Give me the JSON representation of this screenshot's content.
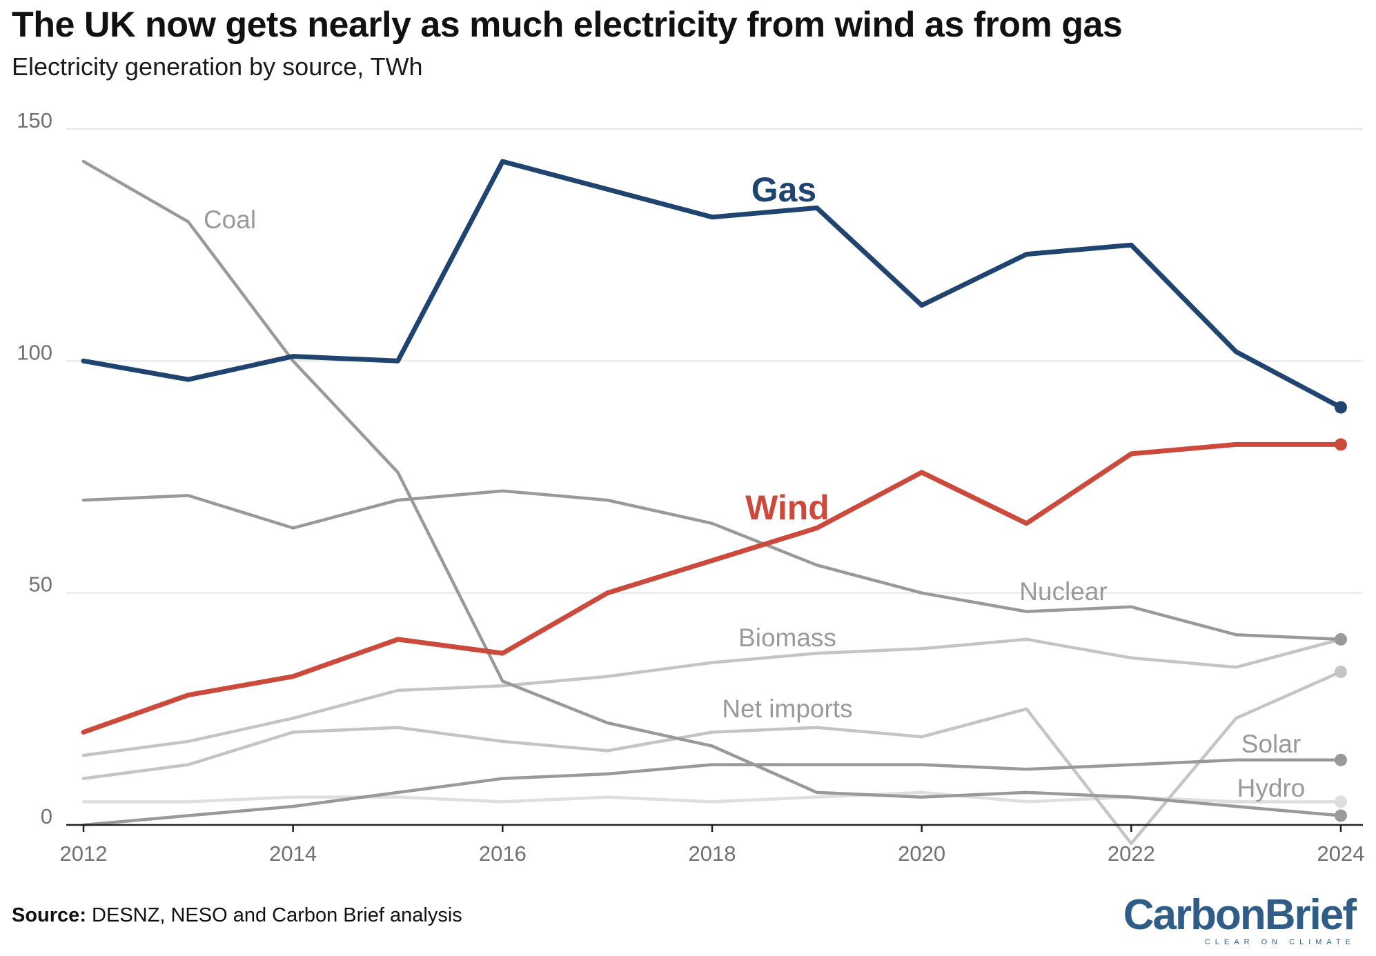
{
  "header": {
    "title": "The UK now gets nearly as much electricity from wind as from gas",
    "subtitle": "Electricity generation by source, TWh"
  },
  "footer": {
    "source_label": "Source:",
    "source_text": "DESNZ, NESO and Carbon Brief analysis",
    "logo_text": "CarbonBrief",
    "logo_tagline": "CLEAR ON CLIMATE"
  },
  "colors": {
    "gas": "#1f4470",
    "wind": "#cc4a3c",
    "dark_grey": "#999999",
    "mid_grey": "#c4c4c4",
    "light_grey": "#dedede",
    "grid": "#e6e6e6",
    "axis": "#222222",
    "tick_text": "#707070"
  },
  "chart_data": {
    "type": "line",
    "title": "The UK now gets nearly as much electricity from wind as from gas",
    "subtitle": "Electricity generation by source, TWh",
    "x": [
      2012,
      2013,
      2014,
      2015,
      2016,
      2017,
      2018,
      2019,
      2020,
      2021,
      2022,
      2023,
      2024
    ],
    "x_ticks": [
      2012,
      2014,
      2016,
      2018,
      2020,
      2022,
      2024
    ],
    "y_ticks": [
      0,
      50,
      100,
      150
    ],
    "ylim": [
      0,
      150
    ],
    "grid": true,
    "series": [
      {
        "name": "Gas",
        "emphasis": "gas",
        "values": [
          100,
          96,
          101,
          100,
          143,
          137,
          131,
          133,
          112,
          123,
          125,
          102,
          90
        ]
      },
      {
        "name": "Wind",
        "emphasis": "wind",
        "values": [
          20,
          28,
          32,
          40,
          37,
          50,
          57,
          64,
          76,
          65,
          80,
          82,
          82
        ]
      },
      {
        "name": "Coal",
        "emphasis": "dark",
        "values": [
          143,
          130,
          100,
          76,
          31,
          22,
          17,
          7,
          6,
          7,
          6,
          4,
          2
        ]
      },
      {
        "name": "Nuclear",
        "emphasis": "dark",
        "values": [
          70,
          71,
          64,
          70,
          72,
          70,
          65,
          56,
          50,
          46,
          47,
          41,
          40
        ]
      },
      {
        "name": "Biomass",
        "emphasis": "mid",
        "values": [
          15,
          18,
          23,
          29,
          30,
          32,
          35,
          37,
          38,
          40,
          36,
          34,
          40
        ]
      },
      {
        "name": "Net imports",
        "emphasis": "mid",
        "values": [
          10,
          13,
          20,
          21,
          18,
          16,
          20,
          21,
          19,
          25,
          -4,
          23,
          33
        ]
      },
      {
        "name": "Solar",
        "emphasis": "dark",
        "values": [
          0,
          2,
          4,
          7,
          10,
          11,
          13,
          13,
          13,
          12,
          13,
          14,
          14
        ]
      },
      {
        "name": "Hydro",
        "emphasis": "light",
        "values": [
          5,
          5,
          6,
          6,
          5,
          6,
          5,
          6,
          7,
          5,
          6,
          5,
          5
        ]
      }
    ]
  }
}
